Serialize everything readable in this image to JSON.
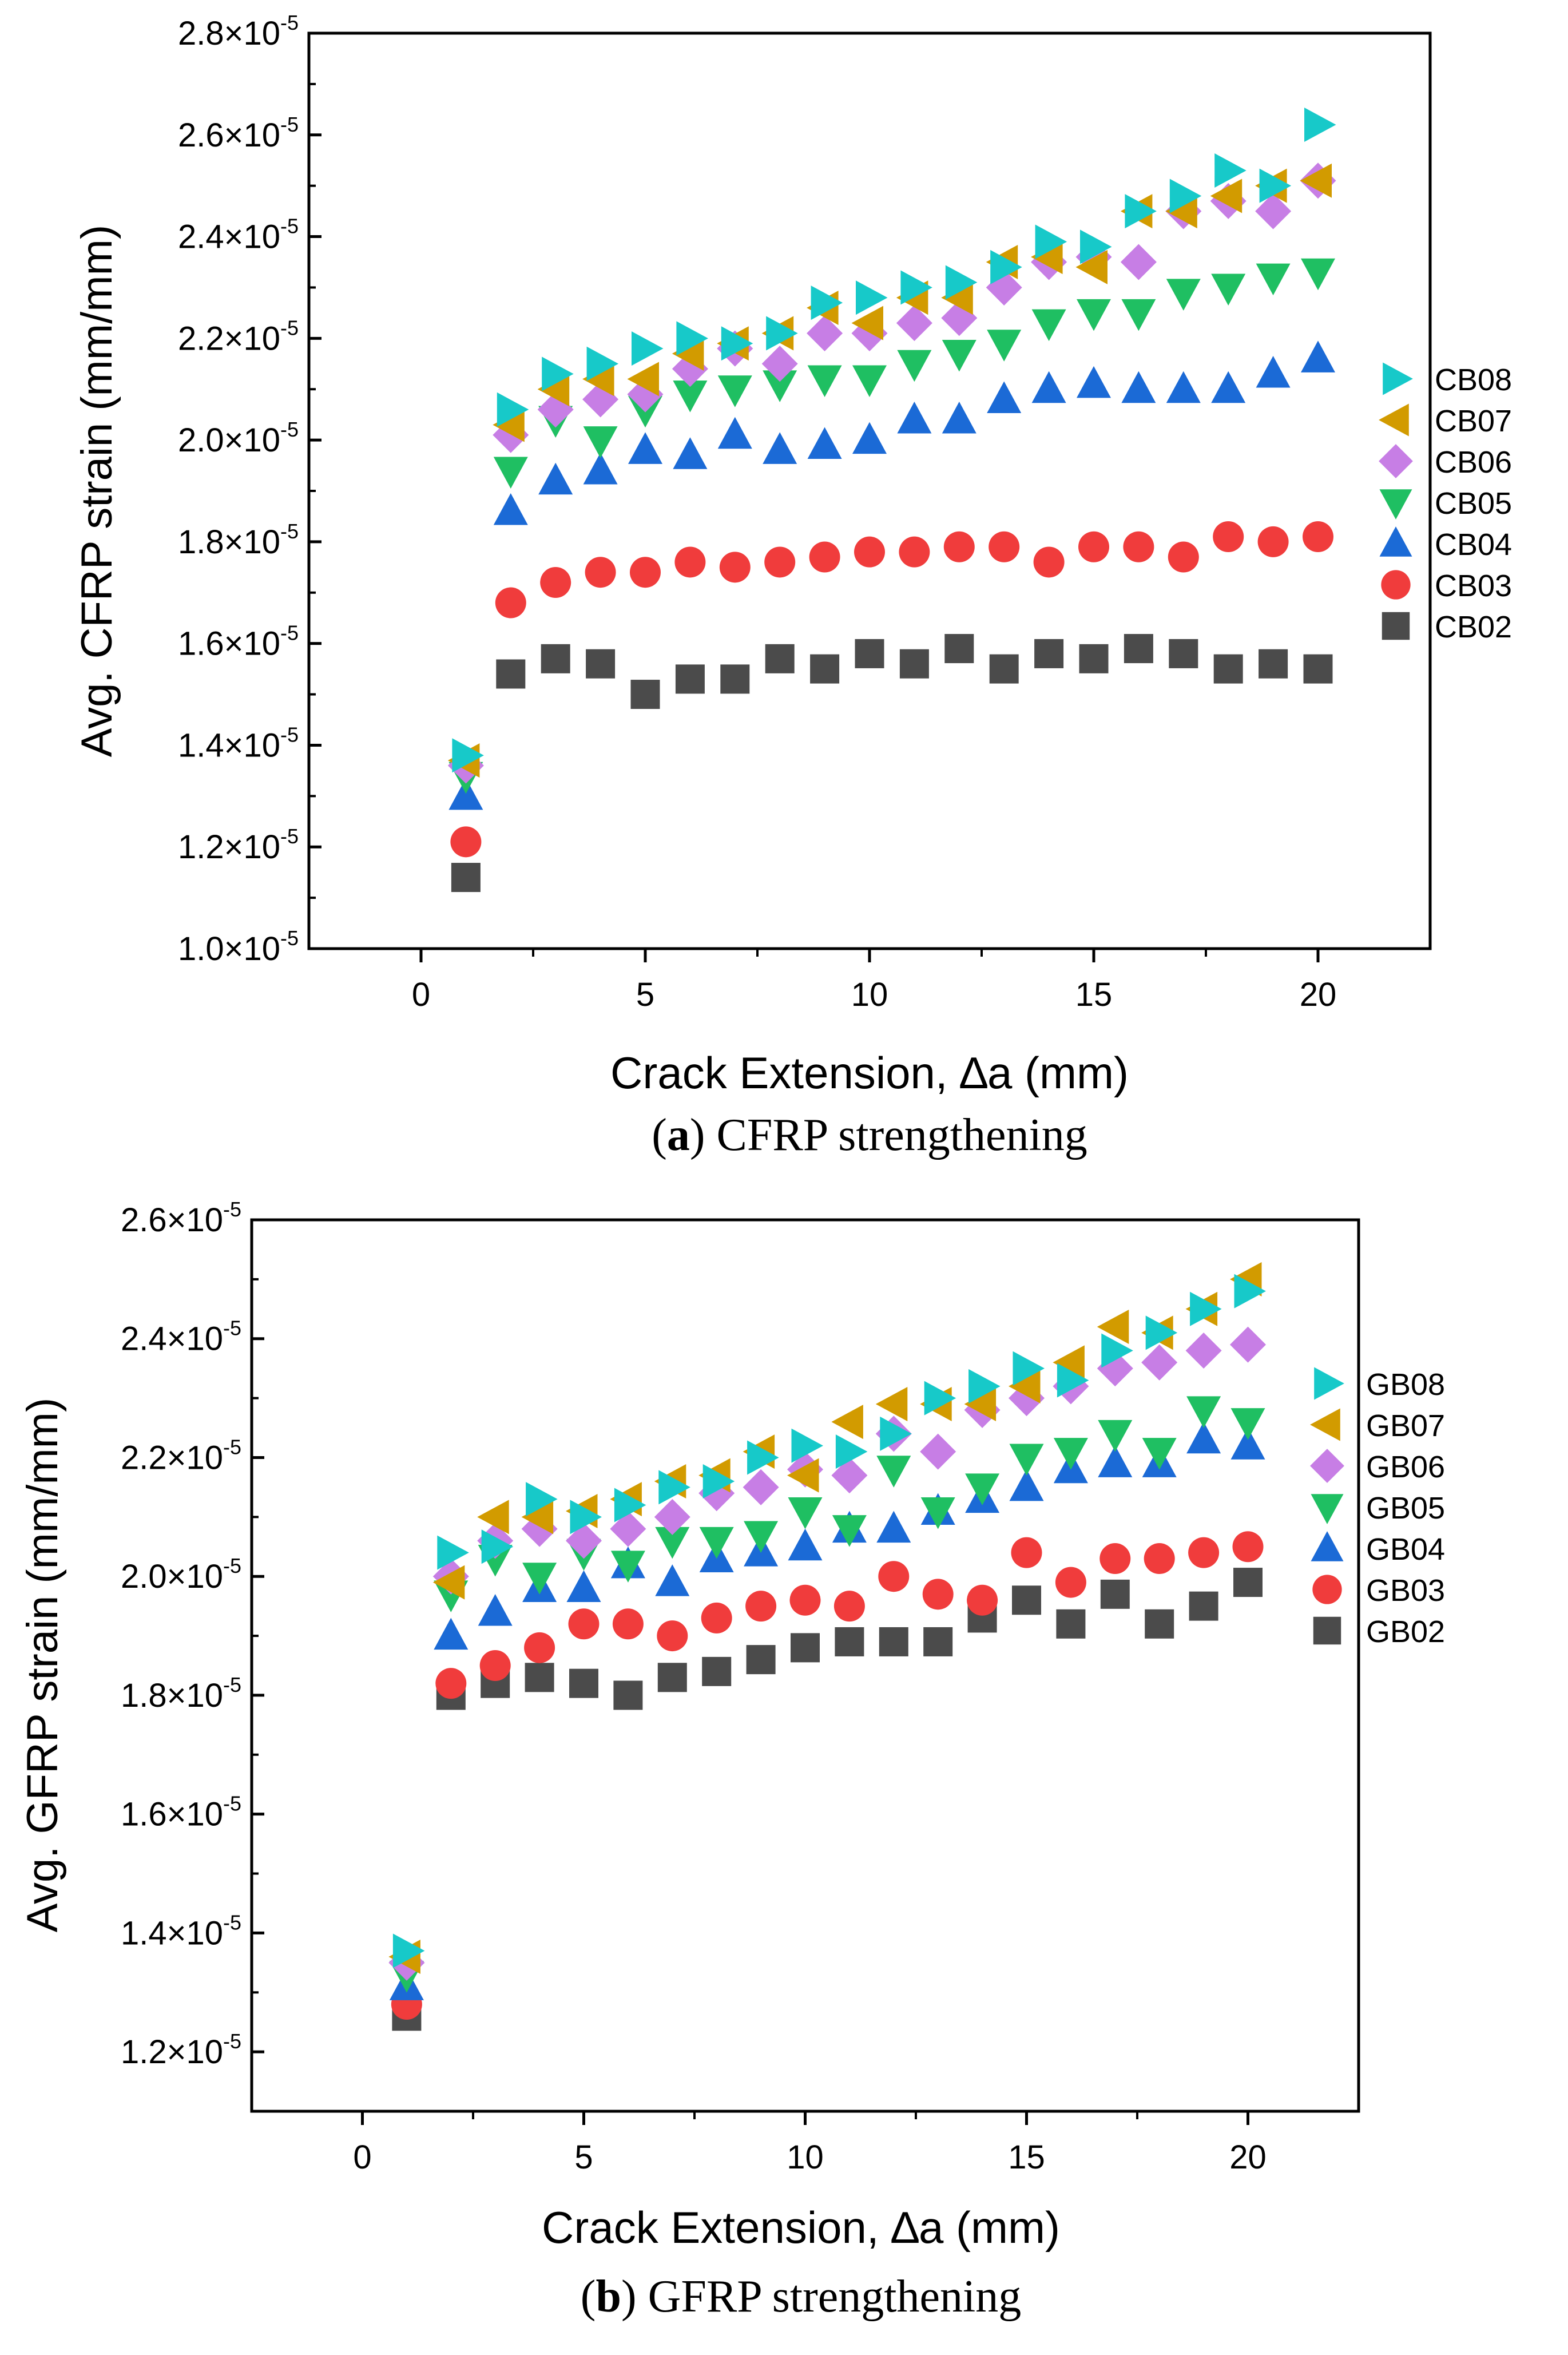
{
  "chart_data": [
    {
      "panel_label": "a",
      "caption": "CFRP strengthening",
      "type": "scatter",
      "xlabel": "Crack Extension, ∆a (mm)",
      "ylabel": "Avg. CFRP strain (mm/mm)",
      "xlim": [
        -2.5,
        22.5
      ],
      "ylim": [
        1e-05,
        2.8e-05
      ],
      "xticks": [
        0,
        5,
        10,
        15,
        20
      ],
      "xtick_labels": [
        "0",
        "5",
        "10",
        "15",
        "20"
      ],
      "yticks": [
        1e-05,
        1.2e-05,
        1.4e-05,
        1.6e-05,
        1.8e-05,
        2e-05,
        2.2e-05,
        2.4e-05,
        2.6e-05,
        2.8e-05
      ],
      "ytick_mantissas": [
        "1.0",
        "1.2",
        "1.4",
        "1.6",
        "1.8",
        "2.0",
        "2.2",
        "2.4",
        "2.6",
        "2.8"
      ],
      "ytick_exponent": "-5",
      "legend_position": "right",
      "x": [
        1,
        2,
        3,
        4,
        5,
        6,
        7,
        8,
        9,
        10,
        11,
        12,
        13,
        14,
        15,
        16,
        17,
        18,
        19,
        20
      ],
      "series": [
        {
          "name": "CB08",
          "marker": "triangle-right",
          "color": "#17c9c9",
          "values": [
            1.38e-05,
            2.06e-05,
            2.13e-05,
            2.15e-05,
            2.18e-05,
            2.2e-05,
            2.19e-05,
            2.21e-05,
            2.27e-05,
            2.28e-05,
            2.3e-05,
            2.31e-05,
            2.34e-05,
            2.39e-05,
            2.38e-05,
            2.45e-05,
            2.48e-05,
            2.53e-05,
            2.5e-05,
            2.62e-05
          ]
        },
        {
          "name": "CB07",
          "marker": "triangle-left",
          "color": "#d29b00",
          "values": [
            1.37e-05,
            2.03e-05,
            2.1e-05,
            2.12e-05,
            2.12e-05,
            2.17e-05,
            2.19e-05,
            2.21e-05,
            2.26e-05,
            2.23e-05,
            2.28e-05,
            2.28e-05,
            2.35e-05,
            2.36e-05,
            2.34e-05,
            2.45e-05,
            2.45e-05,
            2.48e-05,
            2.5e-05,
            2.51e-05
          ]
        },
        {
          "name": "CB06",
          "marker": "diamond",
          "color": "#c77ee5",
          "values": [
            1.36e-05,
            2.01e-05,
            2.06e-05,
            2.08e-05,
            2.09e-05,
            2.14e-05,
            2.18e-05,
            2.15e-05,
            2.21e-05,
            2.21e-05,
            2.23e-05,
            2.24e-05,
            2.3e-05,
            2.35e-05,
            2.36e-05,
            2.35e-05,
            2.45e-05,
            2.47e-05,
            2.45e-05,
            2.51e-05
          ]
        },
        {
          "name": "CB05",
          "marker": "triangle-down",
          "color": "#1fbf62",
          "values": [
            1.34e-05,
            1.94e-05,
            2.04e-05,
            2e-05,
            2.06e-05,
            2.09e-05,
            2.1e-05,
            2.11e-05,
            2.12e-05,
            2.12e-05,
            2.15e-05,
            2.17e-05,
            2.19e-05,
            2.23e-05,
            2.25e-05,
            2.25e-05,
            2.29e-05,
            2.3e-05,
            2.32e-05,
            2.33e-05
          ]
        },
        {
          "name": "CB04",
          "marker": "triangle-up",
          "color": "#1b6ad6",
          "values": [
            1.3e-05,
            1.86e-05,
            1.92e-05,
            1.94e-05,
            1.98e-05,
            1.97e-05,
            2.01e-05,
            1.98e-05,
            1.99e-05,
            2e-05,
            2.04e-05,
            2.04e-05,
            2.08e-05,
            2.1e-05,
            2.11e-05,
            2.1e-05,
            2.1e-05,
            2.1e-05,
            2.13e-05,
            2.16e-05
          ]
        },
        {
          "name": "CB03",
          "marker": "circle",
          "color": "#f03c3c",
          "values": [
            1.21e-05,
            1.68e-05,
            1.72e-05,
            1.74e-05,
            1.74e-05,
            1.76e-05,
            1.75e-05,
            1.76e-05,
            1.77e-05,
            1.78e-05,
            1.78e-05,
            1.79e-05,
            1.79e-05,
            1.76e-05,
            1.79e-05,
            1.79e-05,
            1.77e-05,
            1.81e-05,
            1.8e-05,
            1.81e-05
          ]
        },
        {
          "name": "CB02",
          "marker": "square",
          "color": "#4b4b4b",
          "values": [
            1.14e-05,
            1.54e-05,
            1.57e-05,
            1.56e-05,
            1.5e-05,
            1.53e-05,
            1.53e-05,
            1.57e-05,
            1.55e-05,
            1.58e-05,
            1.56e-05,
            1.59e-05,
            1.55e-05,
            1.58e-05,
            1.57e-05,
            1.59e-05,
            1.58e-05,
            1.55e-05,
            1.56e-05,
            1.55e-05
          ]
        }
      ]
    },
    {
      "panel_label": "b",
      "caption": "GFRP strengthening",
      "type": "scatter",
      "xlabel": "Crack Extension, ∆a (mm)",
      "ylabel": "Avg. GFRP strain (mm/mm)",
      "xlim": [
        -2.5,
        22.5
      ],
      "ylim": [
        1.1e-05,
        2.6e-05
      ],
      "xticks": [
        0,
        5,
        10,
        15,
        20
      ],
      "xtick_labels": [
        "0",
        "5",
        "10",
        "15",
        "20"
      ],
      "yticks": [
        1.2e-05,
        1.4e-05,
        1.6e-05,
        1.8e-05,
        2e-05,
        2.2e-05,
        2.4e-05,
        2.6e-05
      ],
      "ytick_mantissas": [
        "1.2",
        "1.4",
        "1.6",
        "1.8",
        "2.0",
        "2.2",
        "2.4",
        "2.6"
      ],
      "ytick_exponent": "-5",
      "legend_position": "right",
      "x": [
        1,
        2,
        3,
        4,
        5,
        6,
        7,
        8,
        9,
        10,
        11,
        12,
        13,
        14,
        15,
        16,
        17,
        18,
        19,
        20
      ],
      "series": [
        {
          "name": "GB08",
          "marker": "triangle-right",
          "color": "#17c9c9",
          "values": [
            1.37e-05,
            2.04e-05,
            2.05e-05,
            2.13e-05,
            2.1e-05,
            2.12e-05,
            2.15e-05,
            2.16e-05,
            2.2e-05,
            2.22e-05,
            2.21e-05,
            2.24e-05,
            2.3e-05,
            2.32e-05,
            2.35e-05,
            2.33e-05,
            2.38e-05,
            2.41e-05,
            2.45e-05,
            2.48e-05
          ]
        },
        {
          "name": "GB07",
          "marker": "triangle-left",
          "color": "#d29b00",
          "values": [
            1.36e-05,
            1.99e-05,
            2.1e-05,
            2.1e-05,
            2.11e-05,
            2.13e-05,
            2.16e-05,
            2.17e-05,
            2.21e-05,
            2.17e-05,
            2.26e-05,
            2.29e-05,
            2.29e-05,
            2.29e-05,
            2.32e-05,
            2.36e-05,
            2.42e-05,
            2.41e-05,
            2.45e-05,
            2.5e-05
          ]
        },
        {
          "name": "GB06",
          "marker": "diamond",
          "color": "#c77ee5",
          "values": [
            1.35e-05,
            2e-05,
            2.06e-05,
            2.08e-05,
            2.06e-05,
            2.08e-05,
            2.1e-05,
            2.14e-05,
            2.15e-05,
            2.18e-05,
            2.17e-05,
            2.24e-05,
            2.21e-05,
            2.28e-05,
            2.3e-05,
            2.32e-05,
            2.35e-05,
            2.36e-05,
            2.38e-05,
            2.39e-05
          ]
        },
        {
          "name": "GB05",
          "marker": "triangle-down",
          "color": "#1fbf62",
          "values": [
            1.33e-05,
            1.97e-05,
            2.03e-05,
            2e-05,
            2.04e-05,
            2.02e-05,
            2.06e-05,
            2.06e-05,
            2.07e-05,
            2.11e-05,
            2.08e-05,
            2.18e-05,
            2.11e-05,
            2.15e-05,
            2.2e-05,
            2.21e-05,
            2.24e-05,
            2.21e-05,
            2.28e-05,
            2.26e-05
          ]
        },
        {
          "name": "GB04",
          "marker": "triangle-up",
          "color": "#1b6ad6",
          "values": [
            1.31e-05,
            1.9e-05,
            1.94e-05,
            1.98e-05,
            1.98e-05,
            2.02e-05,
            1.99e-05,
            2.03e-05,
            2.04e-05,
            2.05e-05,
            2.08e-05,
            2.08e-05,
            2.11e-05,
            2.13e-05,
            2.15e-05,
            2.18e-05,
            2.19e-05,
            2.19e-05,
            2.23e-05,
            2.22e-05
          ]
        },
        {
          "name": "GB03",
          "marker": "circle",
          "color": "#f03c3c",
          "values": [
            1.28e-05,
            1.82e-05,
            1.85e-05,
            1.88e-05,
            1.92e-05,
            1.92e-05,
            1.9e-05,
            1.93e-05,
            1.95e-05,
            1.96e-05,
            1.95e-05,
            2e-05,
            1.97e-05,
            1.96e-05,
            2.04e-05,
            1.99e-05,
            2.03e-05,
            2.03e-05,
            2.04e-05,
            2.05e-05
          ]
        },
        {
          "name": "GB02",
          "marker": "square",
          "color": "#4b4b4b",
          "values": [
            1.26e-05,
            1.8e-05,
            1.82e-05,
            1.83e-05,
            1.82e-05,
            1.8e-05,
            1.83e-05,
            1.84e-05,
            1.86e-05,
            1.88e-05,
            1.89e-05,
            1.89e-05,
            1.89e-05,
            1.93e-05,
            1.96e-05,
            1.92e-05,
            1.97e-05,
            1.92e-05,
            1.95e-05,
            1.99e-05
          ]
        }
      ]
    }
  ]
}
